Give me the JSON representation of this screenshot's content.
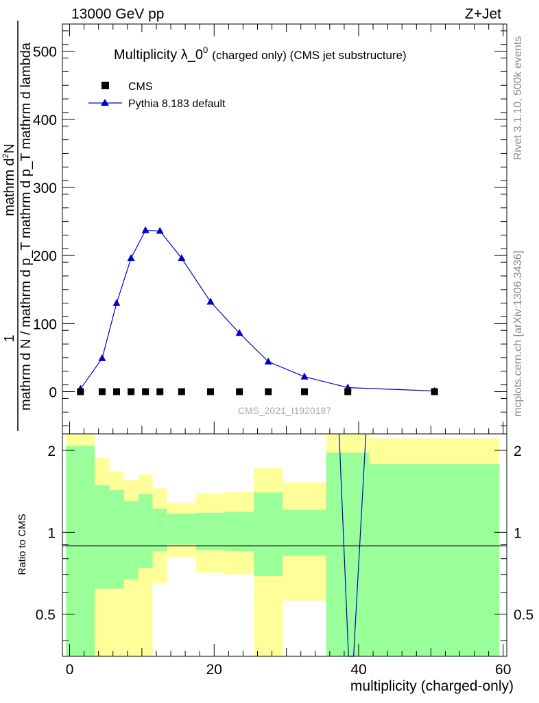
{
  "chart_data": {
    "type": "scatter",
    "header_left": "13000 GeV pp",
    "header_right": "Z+Jet",
    "title_main": "Multiplicity λ_0",
    "title_sup": "0",
    "title_suffix": "(charged only) (CMS jet substructure)",
    "ylabel_top_numerator": "1",
    "ylabel_top_num_part": "mathrm d",
    "ylabel_top_num_sup": "2",
    "ylabel_top_num_end": "N",
    "ylabel_top_denominator": "mathrm d N / mathrm d p_T mathrm d p_T mathrm d lambda",
    "ylabel_ratio": "Ratio to CMS",
    "xlabel": "multiplicity (charged-only)",
    "side_label_top": "Rivet 3.1.10,  500k events",
    "side_label_bottom": "mcplots.cern.ch [arXiv:1306.3436]",
    "watermark": "CMS_2021_I1920187",
    "legend": [
      {
        "name": "CMS",
        "marker": "square",
        "color": "#000000"
      },
      {
        "name": "Pythia 8.183 default",
        "marker": "triangle",
        "color": "#0000cc"
      }
    ],
    "x_range": [
      -1,
      60.5
    ],
    "y_range_top": [
      -62,
      540
    ],
    "y_range_ratio": [
      0.35,
      2.3
    ],
    "x_ticks": [
      0,
      20,
      40,
      60
    ],
    "y_ticks_top": [
      0,
      100,
      200,
      300,
      400,
      500
    ],
    "y_ticks_ratio": [
      0.5,
      1,
      2
    ],
    "series": [
      {
        "name": "CMS",
        "x": [
          1.5,
          4.5,
          6.5,
          8.5,
          10.5,
          12.5,
          15.5,
          19.5,
          23.5,
          27.5,
          32.5,
          38.5,
          50.5
        ],
        "values": [
          0,
          0,
          0,
          0,
          0,
          0,
          0,
          0,
          0,
          0,
          0,
          0,
          0
        ]
      },
      {
        "name": "Pythia 8.183 default",
        "x": [
          1.5,
          4.5,
          6.5,
          8.5,
          10.5,
          12.5,
          15.5,
          19.5,
          23.5,
          27.5,
          32.5,
          38.5,
          50.5
        ],
        "values": [
          4,
          49,
          130,
          196,
          237,
          236,
          196,
          132,
          86,
          44,
          22,
          6,
          1
        ],
        "errors": [
          0.5,
          1.5,
          2.5,
          3,
          4,
          4,
          3,
          2.5,
          2,
          1.5,
          1,
          0.5,
          0.2
        ]
      }
    ],
    "ratio_bands": [
      {
        "xlo": -0.5,
        "xhi": 3.5,
        "g_lo": 0.35,
        "g_hi": 2.08,
        "y_lo": 0.35,
        "y_hi": 2.3
      },
      {
        "xlo": 3.5,
        "xhi": 5.5,
        "g_lo": 0.62,
        "g_hi": 1.49,
        "y_lo": 0.35,
        "y_hi": 1.88
      },
      {
        "xlo": 5.5,
        "xhi": 7.5,
        "g_lo": 0.62,
        "g_hi": 1.43,
        "y_lo": 0.35,
        "y_hi": 1.68
      },
      {
        "xlo": 7.5,
        "xhi": 9.5,
        "g_lo": 0.67,
        "g_hi": 1.3,
        "y_lo": 0.35,
        "y_hi": 1.56
      },
      {
        "xlo": 9.5,
        "xhi": 11.5,
        "g_lo": 0.74,
        "g_hi": 1.38,
        "y_lo": 0.35,
        "y_hi": 1.63
      },
      {
        "xlo": 11.5,
        "xhi": 13.5,
        "g_lo": 0.85,
        "g_hi": 1.22,
        "y_lo": 0.65,
        "y_hi": 1.45
      },
      {
        "xlo": 13.5,
        "xhi": 17.5,
        "g_lo": 0.9,
        "g_hi": 1.17,
        "y_lo": 0.81,
        "y_hi": 1.28
      },
      {
        "xlo": 17.5,
        "xhi": 21.5,
        "g_lo": 0.86,
        "g_hi": 1.18,
        "y_lo": 0.71,
        "y_hi": 1.39
      },
      {
        "xlo": 21.5,
        "xhi": 25.5,
        "g_lo": 0.85,
        "g_hi": 1.19,
        "y_lo": 0.7,
        "y_hi": 1.41
      },
      {
        "xlo": 25.5,
        "xhi": 29.5,
        "g_lo": 0.69,
        "g_hi": 1.4,
        "y_lo": 0.35,
        "y_hi": 1.72
      },
      {
        "xlo": 29.5,
        "xhi": 35.5,
        "g_lo": 0.82,
        "g_hi": 1.21,
        "y_lo": 0.56,
        "y_hi": 1.53
      },
      {
        "xlo": 35.5,
        "xhi": 41.5,
        "g_lo": 0.35,
        "g_hi": 1.96,
        "y_lo": 0.35,
        "y_hi": 2.3
      },
      {
        "xlo": 41.5,
        "xhi": 59.5,
        "g_lo": 0.35,
        "g_hi": 1.78,
        "y_lo": 0.35,
        "y_hi": 2.22
      }
    ],
    "ratio_line": [
      [
        37.3,
        2.3
      ],
      [
        38.6,
        0.35
      ],
      [
        39.3,
        0.35
      ],
      [
        41.0,
        2.3
      ]
    ],
    "colors": {
      "band_inner": "#99ff99",
      "band_outer": "#ffff99",
      "mc_line": "#0000cc",
      "data_marker": "#000000"
    }
  }
}
